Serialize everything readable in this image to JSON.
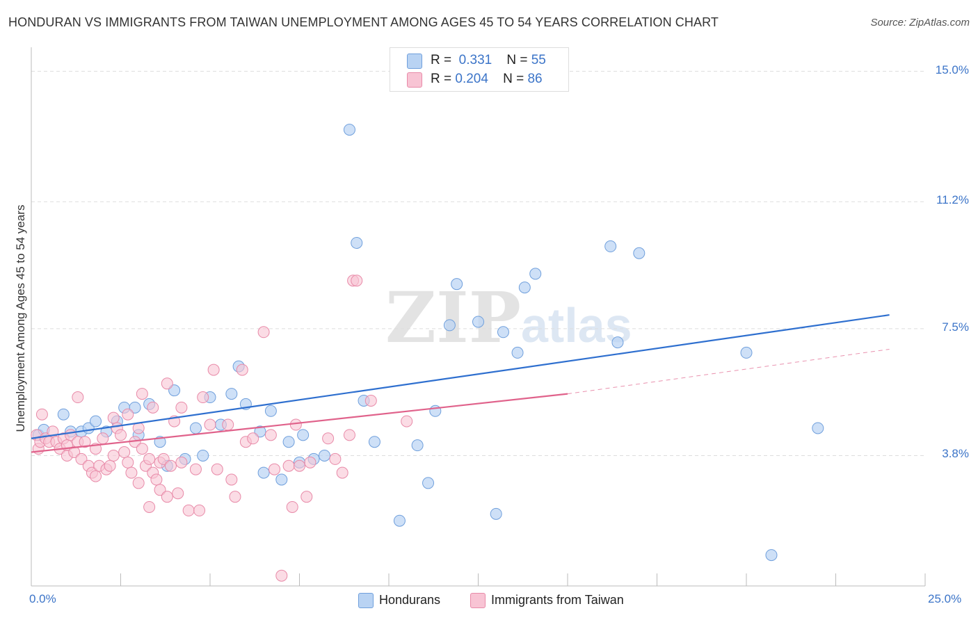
{
  "title": "HONDURAN VS IMMIGRANTS FROM TAIWAN UNEMPLOYMENT AMONG AGES 45 TO 54 YEARS CORRELATION CHART",
  "source": "Source: ZipAtlas.com",
  "watermark": {
    "zip": "ZIP",
    "atlas": "atlas"
  },
  "legend_top": [
    {
      "r_label": "R =",
      "r_value": "0.331",
      "n_label": "N =",
      "n_value": "55"
    },
    {
      "r_label": "R =",
      "r_value": "0.204",
      "n_label": "N =",
      "n_value": "86"
    }
  ],
  "legend_bottom": [
    "Hondurans",
    "Immigrants from Taiwan"
  ],
  "colors": {
    "blue_fill": "#b9d3f3",
    "blue_stroke": "#6f9fdc",
    "blue_line": "#2e6fcf",
    "pink_fill": "#f8c4d4",
    "pink_stroke": "#e88aa8",
    "pink_line": "#e0628b",
    "tick_text": "#3b74c8",
    "grid": "#dddddd"
  },
  "chart_data": {
    "type": "scatter",
    "title": "HONDURAN VS IMMIGRANTS FROM TAIWAN UNEMPLOYMENT AMONG AGES 45 TO 54 YEARS CORRELATION CHART",
    "xlabel": "",
    "ylabel": "Unemployment Among Ages 45 to 54 years",
    "xlim": [
      0,
      25
    ],
    "ylim": [
      0,
      15.5
    ],
    "x_tick_labels": [
      "0.0%",
      "25.0%"
    ],
    "y_ticks": [
      3.8,
      7.5,
      11.2,
      15.0
    ],
    "y_tick_labels": [
      "3.8%",
      "7.5%",
      "11.2%",
      "15.0%"
    ],
    "grid": true,
    "legend_position": "top-center",
    "series": [
      {
        "name": "Hondurans",
        "r": 0.331,
        "n": 55,
        "trend": {
          "x": [
            0,
            24.0
          ],
          "y": [
            4.3,
            7.9
          ],
          "style": "solid"
        },
        "points": [
          [
            0.2,
            4.4
          ],
          [
            0.35,
            4.55
          ],
          [
            0.9,
            5.0
          ],
          [
            1.1,
            4.5
          ],
          [
            1.4,
            4.5
          ],
          [
            1.6,
            4.6
          ],
          [
            1.8,
            4.8
          ],
          [
            2.1,
            4.5
          ],
          [
            2.4,
            4.8
          ],
          [
            2.6,
            5.2
          ],
          [
            2.9,
            5.2
          ],
          [
            3.0,
            4.4
          ],
          [
            3.3,
            5.3
          ],
          [
            3.6,
            4.2
          ],
          [
            3.8,
            3.5
          ],
          [
            4.0,
            5.7
          ],
          [
            4.3,
            3.7
          ],
          [
            4.6,
            4.6
          ],
          [
            4.8,
            3.8
          ],
          [
            5.0,
            5.5
          ],
          [
            5.3,
            4.7
          ],
          [
            5.6,
            5.6
          ],
          [
            5.8,
            6.4
          ],
          [
            6.0,
            5.3
          ],
          [
            6.4,
            4.5
          ],
          [
            6.5,
            3.3
          ],
          [
            6.7,
            5.1
          ],
          [
            7.0,
            3.1
          ],
          [
            7.2,
            4.2
          ],
          [
            7.5,
            3.6
          ],
          [
            7.6,
            4.4
          ],
          [
            7.9,
            3.7
          ],
          [
            8.2,
            3.8
          ],
          [
            8.9,
            13.3
          ],
          [
            9.1,
            10.0
          ],
          [
            9.3,
            5.4
          ],
          [
            9.6,
            4.2
          ],
          [
            10.3,
            1.9
          ],
          [
            10.8,
            4.1
          ],
          [
            11.1,
            3.0
          ],
          [
            11.3,
            5.1
          ],
          [
            11.7,
            7.6
          ],
          [
            11.9,
            8.8
          ],
          [
            12.5,
            7.7
          ],
          [
            13.0,
            2.1
          ],
          [
            13.2,
            7.4
          ],
          [
            13.6,
            6.8
          ],
          [
            13.8,
            8.7
          ],
          [
            14.1,
            9.1
          ],
          [
            16.2,
            9.9
          ],
          [
            16.4,
            7.1
          ],
          [
            17.0,
            9.7
          ],
          [
            20.0,
            6.8
          ],
          [
            20.7,
            0.9
          ],
          [
            22.0,
            4.6
          ]
        ]
      },
      {
        "name": "Immigrants from Taiwan",
        "r": 0.204,
        "n": 86,
        "trend": {
          "x": [
            0,
            15.0
          ],
          "y": [
            3.9,
            5.6
          ],
          "style": "solid"
        },
        "trend_extension": {
          "x": [
            15.0,
            24.0
          ],
          "y": [
            5.6,
            6.9
          ],
          "style": "dashed"
        },
        "points": [
          [
            0.15,
            4.4
          ],
          [
            0.2,
            4.0
          ],
          [
            0.25,
            4.2
          ],
          [
            0.3,
            5.0
          ],
          [
            0.4,
            4.3
          ],
          [
            0.5,
            4.2
          ],
          [
            0.6,
            4.5
          ],
          [
            0.7,
            4.2
          ],
          [
            0.8,
            4.0
          ],
          [
            0.9,
            4.3
          ],
          [
            1.0,
            4.1
          ],
          [
            1.0,
            3.8
          ],
          [
            1.1,
            4.4
          ],
          [
            1.2,
            3.9
          ],
          [
            1.3,
            5.5
          ],
          [
            1.3,
            4.2
          ],
          [
            1.4,
            3.7
          ],
          [
            1.5,
            4.2
          ],
          [
            1.6,
            3.5
          ],
          [
            1.7,
            3.3
          ],
          [
            1.8,
            4.0
          ],
          [
            1.8,
            3.2
          ],
          [
            1.9,
            3.5
          ],
          [
            2.0,
            4.3
          ],
          [
            2.1,
            3.4
          ],
          [
            2.2,
            3.5
          ],
          [
            2.3,
            3.8
          ],
          [
            2.3,
            4.9
          ],
          [
            2.4,
            4.6
          ],
          [
            2.5,
            4.4
          ],
          [
            2.6,
            3.9
          ],
          [
            2.7,
            3.6
          ],
          [
            2.7,
            5.0
          ],
          [
            2.8,
            3.3
          ],
          [
            2.9,
            4.2
          ],
          [
            3.0,
            4.6
          ],
          [
            3.0,
            3.0
          ],
          [
            3.1,
            5.6
          ],
          [
            3.1,
            4.0
          ],
          [
            3.2,
            3.5
          ],
          [
            3.3,
            3.7
          ],
          [
            3.3,
            2.3
          ],
          [
            3.4,
            5.2
          ],
          [
            3.4,
            3.3
          ],
          [
            3.5,
            3.1
          ],
          [
            3.6,
            2.8
          ],
          [
            3.6,
            3.6
          ],
          [
            3.7,
            3.7
          ],
          [
            3.8,
            5.9
          ],
          [
            3.8,
            2.6
          ],
          [
            3.9,
            3.5
          ],
          [
            4.0,
            4.8
          ],
          [
            4.1,
            2.7
          ],
          [
            4.2,
            3.6
          ],
          [
            4.2,
            5.2
          ],
          [
            4.4,
            2.2
          ],
          [
            4.6,
            3.4
          ],
          [
            4.7,
            2.2
          ],
          [
            4.8,
            5.5
          ],
          [
            5.0,
            4.7
          ],
          [
            5.1,
            6.3
          ],
          [
            5.2,
            3.4
          ],
          [
            5.5,
            4.7
          ],
          [
            5.6,
            3.1
          ],
          [
            5.7,
            2.6
          ],
          [
            5.9,
            6.3
          ],
          [
            6.0,
            4.2
          ],
          [
            6.2,
            4.3
          ],
          [
            6.5,
            7.4
          ],
          [
            6.7,
            4.4
          ],
          [
            6.8,
            3.4
          ],
          [
            7.0,
            0.3
          ],
          [
            7.2,
            3.5
          ],
          [
            7.3,
            2.3
          ],
          [
            7.4,
            4.7
          ],
          [
            7.5,
            3.5
          ],
          [
            7.7,
            2.6
          ],
          [
            7.8,
            3.6
          ],
          [
            8.3,
            4.3
          ],
          [
            8.5,
            3.7
          ],
          [
            8.7,
            3.3
          ],
          [
            8.9,
            4.4
          ],
          [
            9.0,
            8.9
          ],
          [
            9.1,
            8.9
          ],
          [
            9.5,
            5.4
          ],
          [
            10.5,
            4.8
          ]
        ]
      }
    ]
  }
}
